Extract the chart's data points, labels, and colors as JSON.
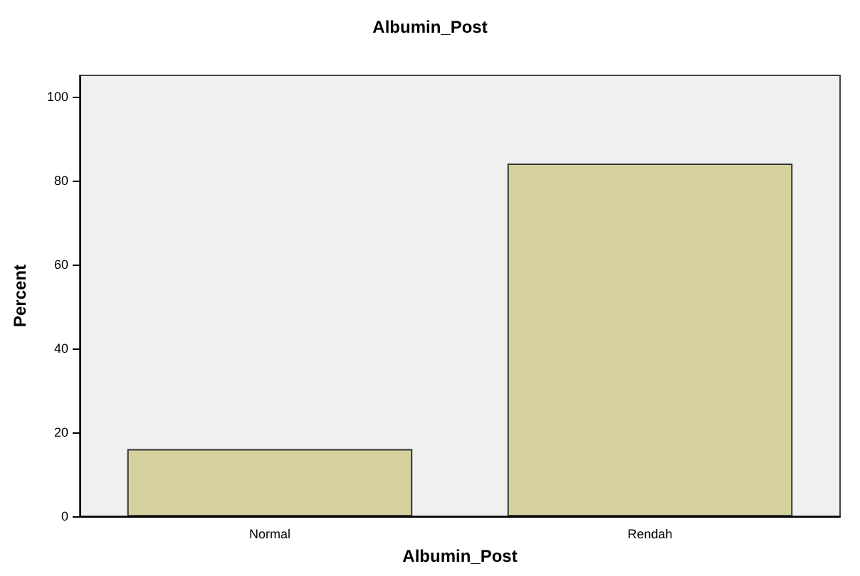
{
  "chart_data": {
    "type": "bar",
    "title": "Albumin_Post",
    "xlabel": "Albumin_Post",
    "ylabel": "Percent",
    "categories": [
      "Normal",
      "Rendah"
    ],
    "values": [
      16,
      84
    ],
    "color": "#d5d19c",
    "ylim": [
      0,
      105
    ],
    "yticks": [
      0,
      20,
      40,
      60,
      80,
      100
    ],
    "grid": false
  }
}
